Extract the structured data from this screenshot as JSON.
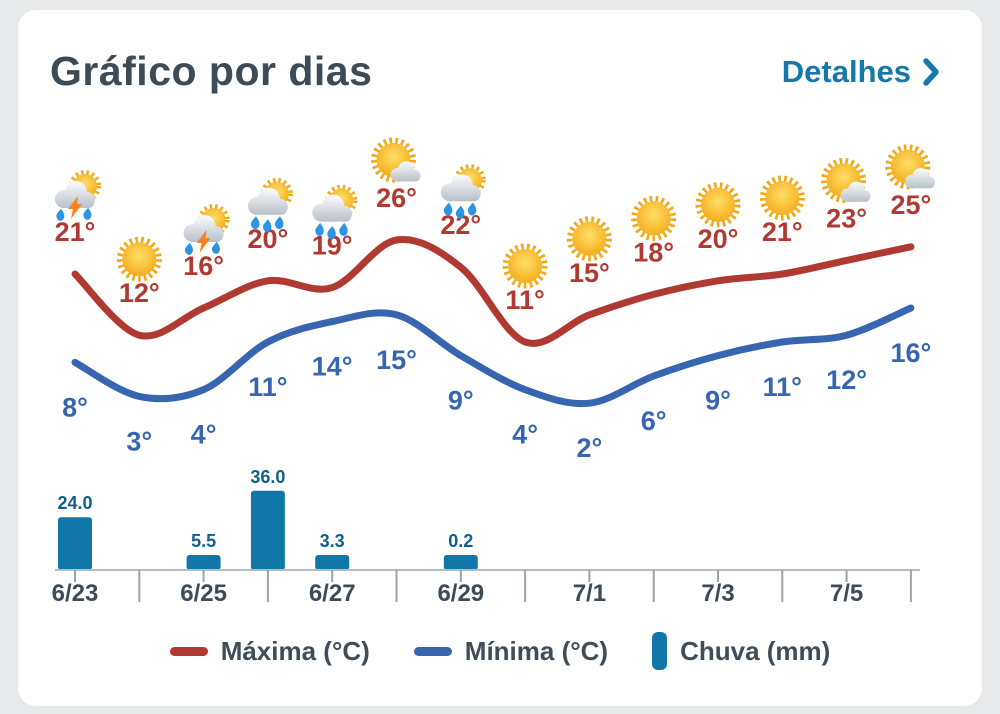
{
  "header": {
    "title": "Gráfico por dias",
    "details_label": "Detalhes"
  },
  "legend": {
    "max": "Máxima (°C)",
    "min": "Mínima (°C)",
    "rain": "Chuva (mm)"
  },
  "colors": {
    "background": "#e8e9ea",
    "card": "#ffffff",
    "title_text": "#3d4b57",
    "accent_blue": "#1478a8",
    "max_line": "#b03a31",
    "min_line": "#3865b0",
    "rain_bar": "#1177a9",
    "rain_value_text": "#0e5f8b",
    "axis": "#b6bcc1",
    "tick": "#9aa4ab"
  },
  "chart_data": {
    "type": "line",
    "title": "Gráfico por dias",
    "x": [
      "6/23",
      "6/24",
      "6/25",
      "6/26",
      "6/27",
      "6/28",
      "6/29",
      "6/30",
      "7/1",
      "7/2",
      "7/3",
      "7/4",
      "7/5",
      "7/6"
    ],
    "x_labeled_ticks": [
      "6/23",
      "6/25",
      "6/27",
      "6/29",
      "7/1",
      "7/3",
      "7/5"
    ],
    "grid": false,
    "legend_position": "bottom",
    "series": [
      {
        "name": "Máxima (°C)",
        "kind": "line",
        "color": "#b03a31",
        "unit": "°",
        "values": [
          21,
          12,
          16,
          20,
          19,
          26,
          22,
          11,
          15,
          18,
          20,
          21,
          23,
          25
        ]
      },
      {
        "name": "Mínima (°C)",
        "kind": "line",
        "color": "#3865b0",
        "unit": "°",
        "values": [
          8,
          3,
          4,
          11,
          14,
          15,
          9,
          4,
          2,
          6,
          9,
          11,
          12,
          16
        ]
      },
      {
        "name": "Chuva (mm)",
        "kind": "bar",
        "color": "#1177a9",
        "values": [
          24.0,
          0,
          5.5,
          36.0,
          3.3,
          0,
          0.2,
          0,
          0,
          0,
          0,
          0,
          0,
          0
        ],
        "value_labels": [
          "24.0",
          "",
          "5.5",
          "36.0",
          "3.3",
          "",
          "0.2",
          "",
          "",
          "",
          "",
          "",
          "",
          ""
        ]
      }
    ],
    "icons": [
      "storm-sun",
      "sun",
      "storm-sun",
      "rain-sun",
      "rain-sun",
      "sun-cloud",
      "rain-sun",
      "sun",
      "sun",
      "sun",
      "sun",
      "sun",
      "sun-cloud",
      "sun-cloud"
    ]
  }
}
